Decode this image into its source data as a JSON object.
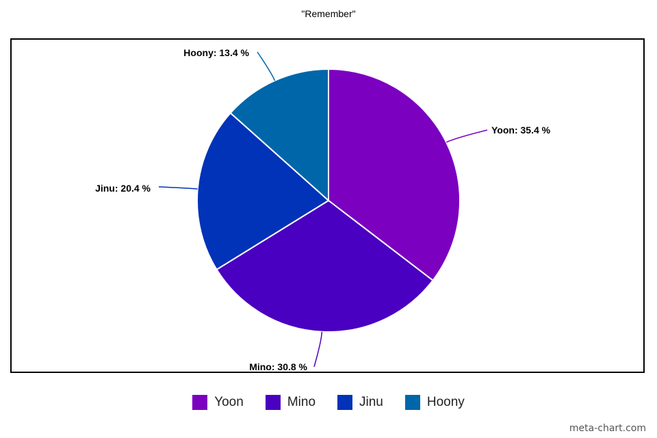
{
  "chart_data": {
    "type": "pie",
    "title": "\"Remember\"",
    "slices": [
      {
        "name": "Yoon",
        "value": 35.4,
        "label": "Yoon: 35.4 %",
        "color": "#7B00C0"
      },
      {
        "name": "Mino",
        "value": 30.8,
        "label": "Mino: 30.8 %",
        "color": "#4A00C0"
      },
      {
        "name": "Jinu",
        "value": 20.4,
        "label": "Jinu: 20.4 %",
        "color": "#0033B8"
      },
      {
        "name": "Hoony",
        "value": 13.4,
        "label": "Hoony: 13.4 %",
        "color": "#0066AA"
      }
    ],
    "legend_position": "bottom"
  },
  "watermark": "meta-chart.com"
}
